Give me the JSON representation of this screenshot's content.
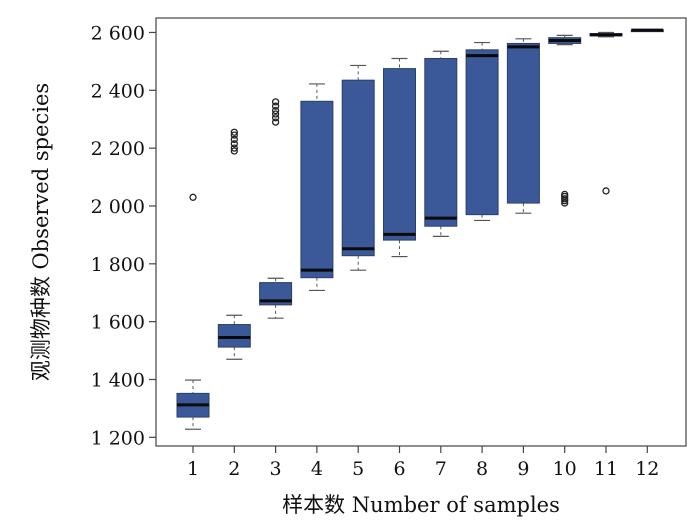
{
  "chart_data": {
    "type": "box",
    "title": "",
    "xlabel": "样本数  Number of samples",
    "ylabel": "观测物种数  Observed species",
    "ylim": [
      1170,
      2650
    ],
    "yticks": [
      1200,
      1400,
      1600,
      1800,
      2000,
      2200,
      2400,
      2600
    ],
    "ytick_labels": [
      "1 200",
      "1 400",
      "1 600",
      "1 800",
      "2 000",
      "2 200",
      "2 400",
      "2 600"
    ],
    "categories": [
      "1",
      "2",
      "3",
      "4",
      "5",
      "6",
      "7",
      "8",
      "9",
      "10",
      "11",
      "12"
    ],
    "box_color": "#3b5998",
    "boxes": [
      {
        "x": "1",
        "whisker_low": 1228,
        "q1": 1270,
        "median": 1312,
        "q3": 1352,
        "whisker_high": 1398,
        "outliers": [
          2030
        ]
      },
      {
        "x": "2",
        "whisker_low": 1470,
        "q1": 1512,
        "median": 1545,
        "q3": 1590,
        "whisker_high": 1622,
        "outliers": [
          2190,
          2200,
          2215,
          2230,
          2245,
          2255
        ]
      },
      {
        "x": "3",
        "whisker_low": 1612,
        "q1": 1658,
        "median": 1672,
        "q3": 1735,
        "whisker_high": 1750,
        "outliers": [
          2290,
          2305,
          2318,
          2330,
          2345,
          2360
        ]
      },
      {
        "x": "4",
        "whisker_low": 1708,
        "q1": 1752,
        "median": 1778,
        "q3": 2362,
        "whisker_high": 2422,
        "outliers": []
      },
      {
        "x": "5",
        "whisker_low": 1778,
        "q1": 1828,
        "median": 1852,
        "q3": 2435,
        "whisker_high": 2486,
        "outliers": []
      },
      {
        "x": "6",
        "whisker_low": 1825,
        "q1": 1882,
        "median": 1902,
        "q3": 2475,
        "whisker_high": 2510,
        "outliers": []
      },
      {
        "x": "7",
        "whisker_low": 1895,
        "q1": 1930,
        "median": 1958,
        "q3": 2510,
        "whisker_high": 2535,
        "outliers": []
      },
      {
        "x": "8",
        "whisker_low": 1950,
        "q1": 1970,
        "median": 2520,
        "q3": 2540,
        "whisker_high": 2565,
        "outliers": []
      },
      {
        "x": "9",
        "whisker_low": 1975,
        "q1": 2010,
        "median": 2550,
        "q3": 2562,
        "whisker_high": 2578,
        "outliers": []
      },
      {
        "x": "10",
        "whisker_low": 2558,
        "q1": 2562,
        "median": 2572,
        "q3": 2582,
        "whisker_high": 2590,
        "outliers": [
          2010,
          2018,
          2025,
          2033,
          2040
        ]
      },
      {
        "x": "11",
        "whisker_low": 2585,
        "q1": 2588,
        "median": 2592,
        "q3": 2596,
        "whisker_high": 2600,
        "outliers": [
          2052
        ]
      },
      {
        "x": "12",
        "whisker_low": 2608,
        "q1": 2608,
        "median": 2608,
        "q3": 2608,
        "whisker_high": 2608,
        "outliers": []
      }
    ]
  }
}
